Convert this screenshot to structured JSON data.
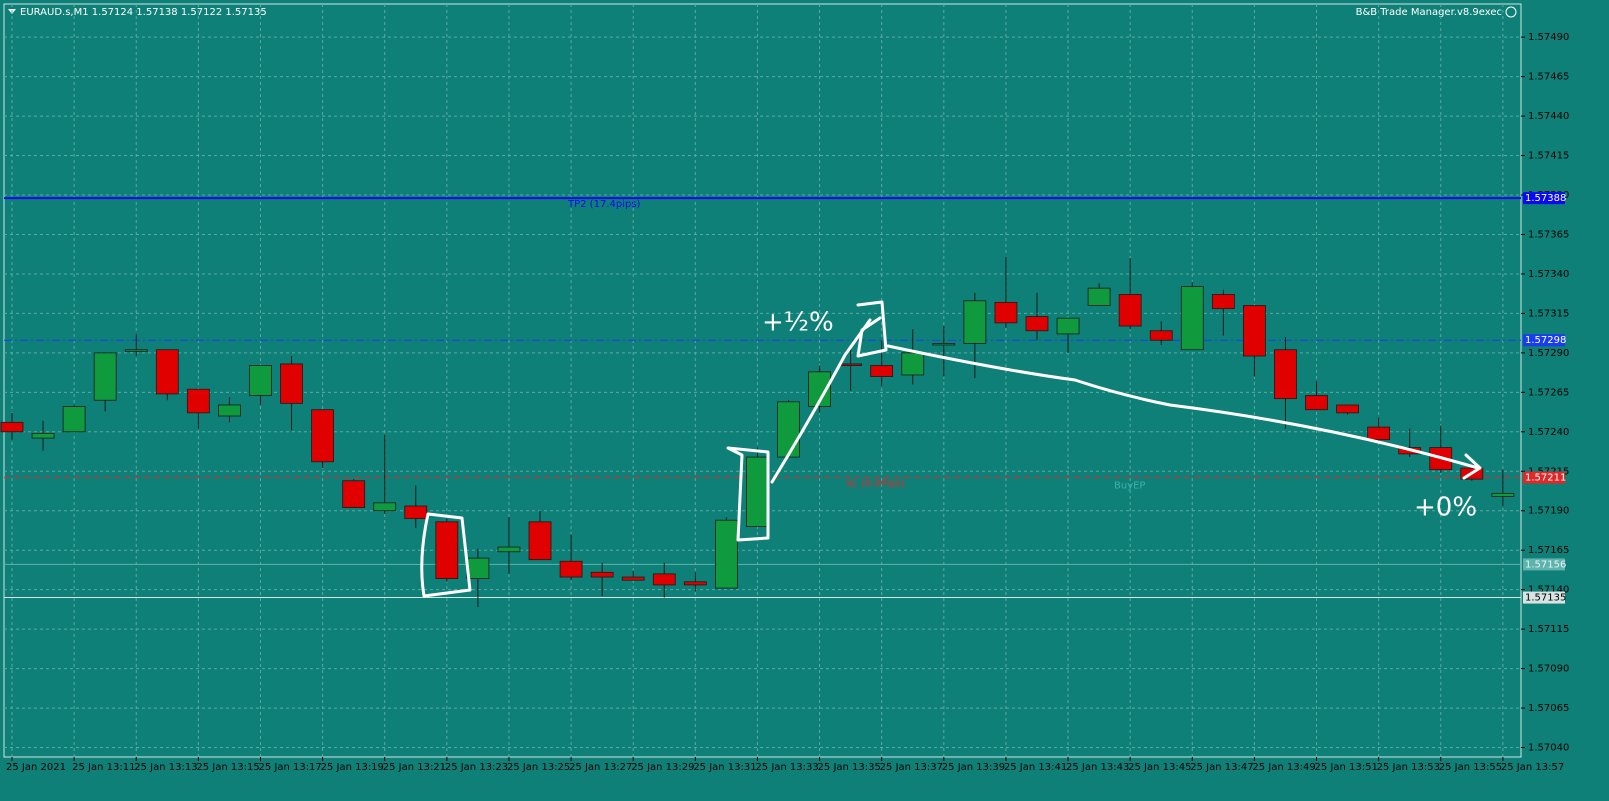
{
  "chart_data": {
    "type": "candlestick",
    "header": "EURAUD.s,M1  1.57124 1.57138 1.57122 1.57135",
    "indicator": "B&B Trade Manager.v8.9exec",
    "categories": [
      "25 Jan 2021",
      null,
      "25 Jan 13:11",
      null,
      "25 Jan 13:13",
      null,
      "25 Jan 13:15",
      null,
      "25 Jan 13:17",
      null,
      "25 Jan 13:19",
      null,
      "25 Jan 13:21",
      null,
      "25 Jan 13:23",
      null,
      "25 Jan 13:25",
      null,
      "25 Jan 13:27",
      null,
      "25 Jan 13:29",
      null,
      "25 Jan 13:31",
      null,
      "25 Jan 13:33",
      null,
      "25 Jan 13:35",
      null,
      "25 Jan 13:37",
      null,
      "25 Jan 13:39",
      null,
      "25 Jan 13:41",
      null,
      "25 Jan 13:43",
      null,
      "25 Jan 13:45",
      null,
      "25 Jan 13:47",
      null,
      "25 Jan 13:49",
      null,
      "25 Jan 13:51",
      null,
      "25 Jan 13:53",
      null,
      "25 Jan 13:55",
      null,
      "25 Jan 13:57"
    ],
    "open": [
      1.57246,
      1.57236,
      1.5724,
      1.5726,
      1.57291,
      1.57292,
      1.57267,
      1.5725,
      1.57263,
      1.57283,
      1.57254,
      1.57209,
      1.5719,
      1.57193,
      1.57183,
      1.57147,
      1.57164,
      1.57183,
      1.57158,
      1.57151,
      1.57148,
      1.5715,
      1.57145,
      1.57141,
      1.5718,
      1.57224,
      1.57256,
      1.57283,
      1.57282,
      1.57276,
      1.57295,
      1.57296,
      1.57322,
      1.57313,
      1.57302,
      1.5732,
      1.57327,
      1.57304,
      1.57292,
      1.57327,
      1.5732,
      1.57292,
      1.57263,
      1.57257,
      1.57243,
      1.5723,
      1.5723,
      1.57217,
      1.57199
    ],
    "high": [
      1.57252,
      1.57247,
      1.57257,
      1.5729,
      1.57302,
      1.57292,
      1.57267,
      1.57262,
      1.57282,
      1.57288,
      1.57254,
      1.5721,
      1.57238,
      1.57206,
      1.57185,
      1.57166,
      1.57186,
      1.5719,
      1.57175,
      1.57157,
      1.57152,
      1.57157,
      1.57151,
      1.57186,
      1.5723,
      1.5726,
      1.57282,
      1.57295,
      1.57298,
      1.57305,
      1.57307,
      1.57328,
      1.57351,
      1.57328,
      1.57312,
      1.57334,
      1.5735,
      1.5731,
      1.57335,
      1.5733,
      1.5732,
      1.573,
      1.57272,
      1.57257,
      1.57249,
      1.57242,
      1.57244,
      1.57219,
      1.57216
    ],
    "low": [
      1.57235,
      1.57228,
      1.5724,
      1.57253,
      1.57288,
      1.5726,
      1.57242,
      1.57246,
      1.57257,
      1.57241,
      1.57217,
      1.57192,
      1.57188,
      1.57179,
      1.57145,
      1.57129,
      1.5715,
      1.57159,
      1.57146,
      1.57136,
      1.57146,
      1.57135,
      1.57139,
      1.57141,
      1.5718,
      1.57224,
      1.57252,
      1.57266,
      1.57269,
      1.5727,
      1.57275,
      1.57274,
      1.57306,
      1.57298,
      1.5729,
      1.5732,
      1.57305,
      1.57295,
      1.57292,
      1.57301,
      1.57275,
      1.57242,
      1.57254,
      1.57251,
      1.57233,
      1.57224,
      1.57214,
      1.57209,
      1.57193
    ],
    "close": [
      1.5724,
      1.57239,
      1.57256,
      1.5729,
      1.57292,
      1.57264,
      1.57252,
      1.57257,
      1.57282,
      1.57258,
      1.57221,
      1.57192,
      1.57195,
      1.57185,
      1.57147,
      1.5716,
      1.57167,
      1.57159,
      1.57148,
      1.57148,
      1.57146,
      1.57143,
      1.57143,
      1.57184,
      1.57224,
      1.57259,
      1.57278,
      1.57282,
      1.57275,
      1.5729,
      1.57296,
      1.57323,
      1.57309,
      1.57304,
      1.57312,
      1.57331,
      1.57307,
      1.57298,
      1.57332,
      1.57318,
      1.57288,
      1.57261,
      1.57254,
      1.57252,
      1.57235,
      1.57226,
      1.57216,
      1.5721,
      1.57201
    ],
    "up_color": "#0f9a3e",
    "down_color": "#e00000",
    "ylim": [
      1.57034,
      1.57511
    ],
    "yticks": [
      {
        "value": 1.5704,
        "label": "1.57040"
      },
      {
        "value": 1.57065,
        "label": "1.57065"
      },
      {
        "value": 1.5709,
        "label": "1.57090"
      },
      {
        "value": 1.57115,
        "label": "1.57115"
      },
      {
        "value": 1.5714,
        "label": "1.57140"
      },
      {
        "value": 1.57165,
        "label": "1.57165"
      },
      {
        "value": 1.5719,
        "label": "1.57190"
      },
      {
        "value": 1.57215,
        "label": "1.57215"
      },
      {
        "value": 1.5724,
        "label": "1.57240"
      },
      {
        "value": 1.57265,
        "label": "1.57265"
      },
      {
        "value": 1.5729,
        "label": "1.57290"
      },
      {
        "value": 1.57315,
        "label": "1.57315"
      },
      {
        "value": 1.5734,
        "label": "1.57340"
      },
      {
        "value": 1.57365,
        "label": "1.57365"
      },
      {
        "value": 1.5739,
        "label": "1.57390"
      },
      {
        "value": 1.57415,
        "label": "1.57415"
      },
      {
        "value": 1.5744,
        "label": "1.57440"
      },
      {
        "value": 1.57465,
        "label": "1.57465"
      },
      {
        "value": 1.5749,
        "label": "1.57490"
      }
    ],
    "grid": true,
    "levels": [
      {
        "value": 1.57388,
        "label": "TP2 (17.4pips)",
        "color": "#0a0af0",
        "dash": "solid",
        "text_color": "#ffffff"
      },
      {
        "value": 1.57298,
        "color": "#1a3cf0",
        "dash": "dashdot",
        "text_color": "#ffffff"
      },
      {
        "value": 1.57211,
        "label": "SL (0.0Pips)",
        "color": "#e02828",
        "dash": "dashed",
        "text_color": "#ffffff"
      },
      {
        "value": 1.57156,
        "color": "#5fb3ad",
        "dash": "solid",
        "text_color": "#e8f4f3"
      },
      {
        "value": 1.57135,
        "color": "#d8e4e3",
        "dash": "solid",
        "text_color": "#000000"
      }
    ],
    "entry_label": "BuyEP",
    "annotations": [
      "+½%",
      "+0%"
    ]
  }
}
